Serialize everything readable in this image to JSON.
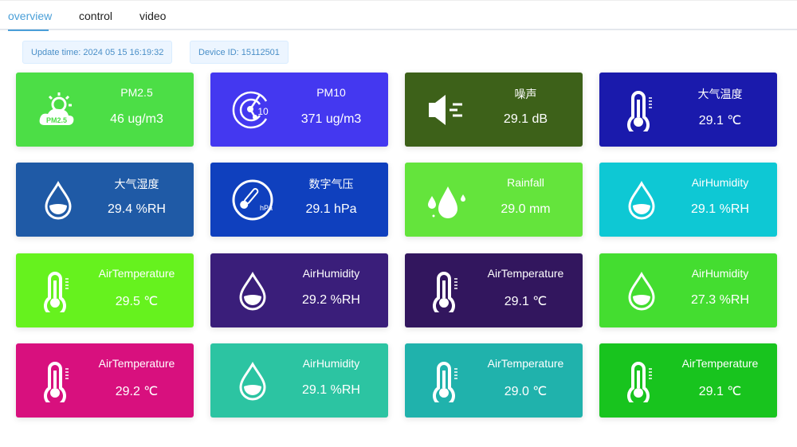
{
  "tabs": [
    {
      "label": "overview",
      "active": true
    },
    {
      "label": "control"
    },
    {
      "label": "video"
    }
  ],
  "info": {
    "update_time": "Update time: 2024 05 15 16:19:32",
    "device_id": "Device ID: 15112501"
  },
  "cards": [
    {
      "name": "PM2.5",
      "value": "46 ug/m3",
      "color": "#4cde46",
      "icon": "pm25-cloud-icon"
    },
    {
      "name": "PM10",
      "value": "371 ug/m3",
      "color": "#4438f0",
      "icon": "pm10-radar-icon"
    },
    {
      "name": "噪声",
      "value": "29.1 dB",
      "color": "#3d6119",
      "icon": "speaker-noise-icon"
    },
    {
      "name": "大气温度",
      "value": "29.1 ℃",
      "color": "#1a1aac",
      "icon": "thermometer-icon"
    },
    {
      "name": "大气湿度",
      "value": "29.4 %RH",
      "color": "#1f5aa6",
      "icon": "water-drop-icon"
    },
    {
      "name": "数字气压",
      "value": "29.1 hPa",
      "color": "#0f40be",
      "icon": "pressure-gauge-icon"
    },
    {
      "name": "Rainfall",
      "value": "29.0 mm",
      "color": "#64e43c",
      "icon": "rain-drops-icon"
    },
    {
      "name": "AirHumidity",
      "value": "29.1 %RH",
      "color": "#0ec8d4",
      "icon": "water-drop-icon"
    },
    {
      "name": "AirTemperature",
      "value": "29.5 ℃",
      "color": "#66f21e",
      "icon": "thermometer-icon"
    },
    {
      "name": "AirHumidity",
      "value": "29.2 %RH",
      "color": "#3a1e7a",
      "icon": "water-drop-icon"
    },
    {
      "name": "AirTemperature",
      "value": "29.1 ℃",
      "color": "#32165e",
      "icon": "thermometer-icon"
    },
    {
      "name": "AirHumidity",
      "value": "27.3 %RH",
      "color": "#44dd30",
      "icon": "water-drop-icon"
    },
    {
      "name": "AirTemperature",
      "value": "29.2 ℃",
      "color": "#d8107e",
      "icon": "thermometer-icon"
    },
    {
      "name": "AirHumidity",
      "value": "29.1 %RH",
      "color": "#2cc4a2",
      "icon": "water-drop-icon"
    },
    {
      "name": "AirTemperature",
      "value": "29.0 ℃",
      "color": "#20b2ac",
      "icon": "thermometer-icon"
    },
    {
      "name": "AirTemperature",
      "value": "29.1 ℃",
      "color": "#18c41e",
      "icon": "thermometer-icon"
    }
  ]
}
